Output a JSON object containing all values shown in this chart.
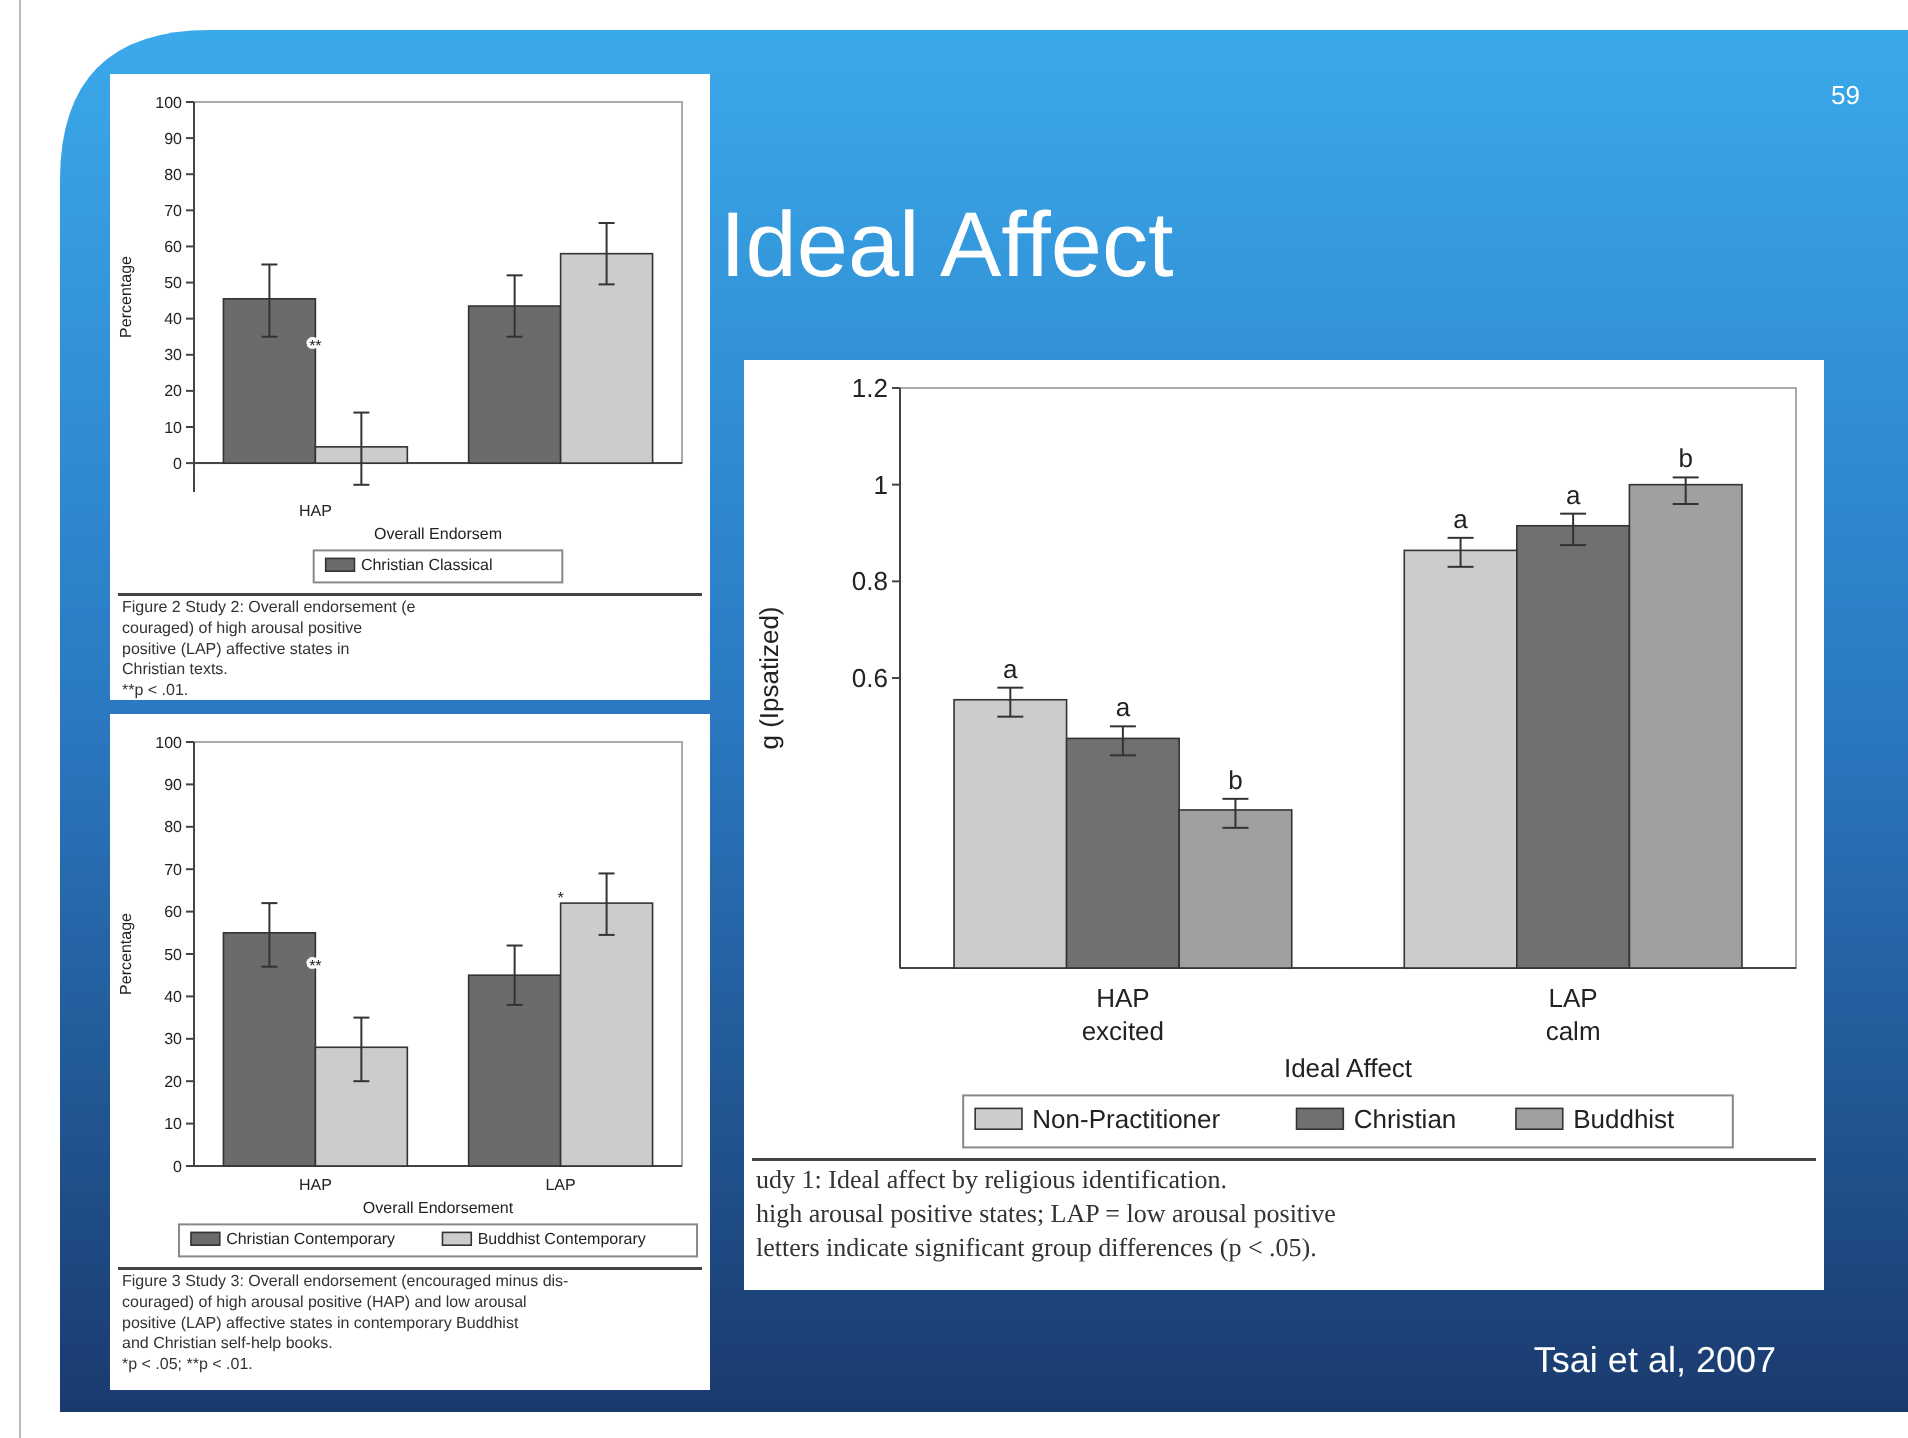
{
  "chart_data": [
    {
      "type": "bar",
      "ylabel": "Percentage",
      "xlabel": "Overall Endorsem",
      "categories": [
        "HAP",
        null
      ],
      "ylim": [
        -8,
        100
      ],
      "yticks": [
        0,
        10,
        20,
        30,
        40,
        50,
        60,
        70,
        80,
        90,
        100
      ],
      "legend": "bottom",
      "series": [
        {
          "name": "Christian Classical",
          "color": "#6b6b6b",
          "values": [
            45.5,
            43.5
          ],
          "errors": [
            [
              35,
              55
            ],
            [
              35,
              52
            ]
          ]
        },
        {
          "color": "#cccccc",
          "values": [
            4.5,
            58
          ],
          "errors": [
            [
              -6,
              14
            ],
            [
              49.5,
              66.5
            ]
          ]
        }
      ],
      "annotations": [
        {
          "text": "**",
          "x": "HAP",
          "y": 31
        },
        "Figure 2  Study 2: Overall endorsement (e",
        "couraged) of high arousal positive",
        "positive (LAP) affective states in",
        "Christian texts.",
        "**p < .01."
      ]
    },
    {
      "type": "bar",
      "ylabel": "Percentage",
      "xlabel": "Overall Endorsement",
      "categories": [
        "HAP",
        "LAP"
      ],
      "ylim": [
        0,
        100
      ],
      "yticks": [
        0,
        10,
        20,
        30,
        40,
        50,
        60,
        70,
        80,
        90,
        100
      ],
      "legend": "bottom",
      "series": [
        {
          "name": "Christian Contemporary",
          "color": "#6b6b6b",
          "values": [
            55,
            45
          ],
          "errors": [
            [
              47,
              62
            ],
            [
              38,
              52
            ]
          ]
        },
        {
          "name": "Buddhist Contemporary",
          "color": "#cccccc",
          "values": [
            28,
            62
          ],
          "errors": [
            [
              20,
              35
            ],
            [
              54.5,
              69
            ]
          ]
        }
      ],
      "annotations": [
        {
          "text": "**",
          "x": "HAP",
          "y": 46
        },
        {
          "text": "*",
          "x": "LAP",
          "y": 62
        },
        "Figure 3  Study 3: Overall endorsement (encouraged minus dis-",
        "couraged) of high arousal positive (HAP) and low arousal",
        "positive (LAP) affective states in contemporary Buddhist",
        "and Christian self-help books.",
        "*p < .05; **p < .01."
      ]
    },
    {
      "type": "bar",
      "ylabel": "g (Ipsatized)",
      "xlabel": "Ideal Affect",
      "categories": [
        "HAP\nexcited",
        "LAP\ncalm"
      ],
      "ylim": [
        0,
        1.2
      ],
      "yticks": [
        0.6,
        0.8,
        1,
        1.2
      ],
      "legend": "bottom",
      "series": [
        {
          "name": "Non-Practitioner",
          "color": "#cccccc",
          "values": [
            0.555,
            0.864
          ],
          "errors": [
            [
              0.52,
              0.58
            ],
            [
              0.83,
              0.89
            ]
          ],
          "value_labels": [
            "a",
            "a"
          ]
        },
        {
          "name": "Christian",
          "color": "#707070",
          "values": [
            0.475,
            0.915
          ],
          "errors": [
            [
              0.44,
              0.5
            ],
            [
              0.875,
              0.94
            ]
          ],
          "value_labels": [
            "a",
            "a"
          ]
        },
        {
          "name": "Buddhist",
          "color": "#a0a0a0",
          "values": [
            0.327,
            1.0
          ],
          "errors": [
            [
              0.29,
              0.35
            ],
            [
              0.96,
              1.015
            ]
          ],
          "value_labels": [
            "b",
            "b"
          ]
        }
      ],
      "annotations": [
        "udy 1: Ideal affect by religious identification.",
        "high arousal positive states; LAP = low arousal positive",
        "letters indicate significant group differences (p < .05)."
      ]
    },
    {
      "type": "other",
      "title": "Ideal Affect",
      "annotations": [
        "59",
        "Tsai et al, 2007"
      ]
    }
  ]
}
